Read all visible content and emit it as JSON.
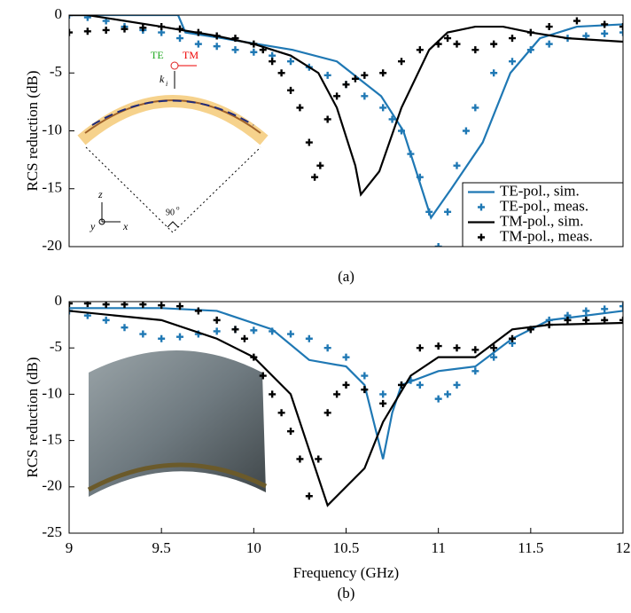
{
  "chart_data": [
    {
      "type": "line",
      "caption": "(a)",
      "y_label": "RCS reduction (dB)",
      "xlim": [
        9,
        12
      ],
      "ylim": [
        -20,
        0
      ],
      "yticks": [
        0,
        -5,
        -10,
        -15,
        -20
      ],
      "legend": "lower right",
      "inset_labels": {
        "te": "TE",
        "tm": "TM",
        "k": "k",
        "k_sub": "i",
        "angle": "90",
        "angle_sup": "o",
        "z": "z",
        "y": "y",
        "x": "x"
      },
      "series": [
        {
          "name": "TE-pol., sim.",
          "style": "line",
          "color": "#1f78b4",
          "x": [
            9,
            9.3,
            9.59,
            9.63,
            9.83,
            10.21,
            10.45,
            10.69,
            10.81,
            10.96,
            11.07,
            11.24,
            11.39,
            11.55,
            11.75,
            12
          ],
          "values": [
            0,
            0,
            0,
            -1.5,
            -2,
            -3,
            -4,
            -7,
            -10,
            -17.5,
            -15,
            -11,
            -5,
            -2,
            -1,
            -0.8
          ]
        },
        {
          "name": "TE-pol., meas.",
          "style": "markers",
          "color": "#1f78b4",
          "x": [
            9,
            9.1,
            9.2,
            9.3,
            9.4,
            9.5,
            9.6,
            9.7,
            9.8,
            9.9,
            10,
            10.1,
            10.2,
            10.3,
            10.4,
            10.5,
            10.6,
            10.7,
            10.75,
            10.8,
            10.85,
            10.9,
            10.95,
            11,
            11.05,
            11.1,
            11.15,
            11.2,
            11.3,
            11.4,
            11.5,
            11.6,
            11.7,
            11.8,
            11.9,
            12
          ],
          "values": [
            0,
            -0.2,
            -0.5,
            -1,
            -1.3,
            -1.5,
            -2,
            -2.5,
            -2.7,
            -3,
            -3.2,
            -3.5,
            -4,
            -4.5,
            -5.2,
            -6,
            -7,
            -8,
            -9,
            -10,
            -12,
            -14,
            -17,
            -20,
            -17,
            -13,
            -10,
            -8,
            -5,
            -4,
            -3,
            -2.5,
            -2,
            -1.8,
            -1.6,
            -1.5
          ]
        },
        {
          "name": "TM-pol., sim.",
          "style": "line",
          "color": "#000000",
          "x": [
            9,
            9.1,
            9.5,
            9.8,
            10,
            10.2,
            10.35,
            10.45,
            10.55,
            10.58,
            10.68,
            10.8,
            10.95,
            11.05,
            11.2,
            11.35,
            11.5,
            11.7,
            12
          ],
          "values": [
            0,
            0,
            -1,
            -1.8,
            -2.5,
            -3.5,
            -5,
            -8,
            -13,
            -15.5,
            -13.5,
            -8,
            -3,
            -1.5,
            -1,
            -1,
            -1.5,
            -2,
            -2.3
          ]
        },
        {
          "name": "TM-pol., meas.",
          "style": "markers",
          "color": "#000000",
          "x": [
            9,
            9.1,
            9.2,
            9.3,
            9.4,
            9.5,
            9.6,
            9.7,
            9.8,
            9.9,
            10,
            10.05,
            10.1,
            10.15,
            10.2,
            10.25,
            10.3,
            10.33,
            10.36,
            10.4,
            10.45,
            10.5,
            10.55,
            10.6,
            10.7,
            10.8,
            10.9,
            11,
            11.05,
            11.1,
            11.2,
            11.3,
            11.4,
            11.5,
            11.6,
            11.75,
            11.9,
            12
          ],
          "values": [
            -1.5,
            -1.4,
            -1.3,
            -1.2,
            -1.1,
            -1,
            -1.2,
            -1.5,
            -1.8,
            -2,
            -2.5,
            -3,
            -4,
            -5,
            -6.5,
            -8,
            -11,
            -14,
            -13,
            -9,
            -7,
            -6,
            -5.5,
            -5.2,
            -5,
            -4,
            -3,
            -2.5,
            -2,
            -2.5,
            -3,
            -2.5,
            -2,
            -1.5,
            -1,
            -0.5,
            -0.8,
            -1
          ]
        }
      ]
    },
    {
      "type": "line",
      "caption": "(b)",
      "y_label": "RCS reduction (dB)",
      "x_label": "Frequency (GHz)",
      "xlim": [
        9,
        12
      ],
      "xticks": [
        9,
        9.5,
        10,
        10.5,
        11,
        11.5,
        12
      ],
      "ylim": [
        -25,
        0
      ],
      "yticks": [
        0,
        -5,
        -10,
        -15,
        -20,
        -25
      ],
      "series": [
        {
          "style": "line",
          "color": "#1f78b4",
          "x": [
            9,
            9.5,
            9.8,
            10.1,
            10.3,
            10.5,
            10.6,
            10.7,
            10.75,
            10.8,
            11,
            11.2,
            11.4,
            11.6,
            12
          ],
          "values": [
            -0.7,
            -0.7,
            -1,
            -3,
            -6.3,
            -7,
            -9,
            -17,
            -12,
            -9,
            -7.5,
            -7,
            -4,
            -2,
            -1
          ]
        },
        {
          "style": "markers",
          "color": "#1f78b4",
          "x": [
            9,
            9.1,
            9.2,
            9.3,
            9.4,
            9.5,
            9.6,
            9.7,
            9.8,
            9.9,
            10,
            10.1,
            10.2,
            10.3,
            10.4,
            10.5,
            10.6,
            10.7,
            10.8,
            10.85,
            10.9,
            11,
            11.05,
            11.1,
            11.2,
            11.3,
            11.4,
            11.5,
            11.6,
            11.7,
            11.8,
            11.9,
            12
          ],
          "values": [
            -1,
            -1.5,
            -2,
            -2.8,
            -3.5,
            -4,
            -3.8,
            -3.5,
            -3.2,
            -3,
            -3.1,
            -3.2,
            -3.5,
            -4,
            -5,
            -6,
            -8,
            -10,
            -9,
            -8.5,
            -9,
            -10.5,
            -10,
            -9,
            -7.5,
            -6,
            -4.5,
            -3,
            -2,
            -1.5,
            -1,
            -0.8,
            -0.5
          ]
        },
        {
          "style": "line",
          "color": "#000000",
          "x": [
            9,
            9.5,
            9.8,
            10,
            10.2,
            10.3,
            10.4,
            10.6,
            10.7,
            10.85,
            11,
            11.2,
            11.4,
            11.6,
            12
          ],
          "values": [
            -1,
            -2,
            -4,
            -6,
            -10,
            -16,
            -22,
            -18,
            -13,
            -8,
            -6,
            -6,
            -3,
            -2.5,
            -2.3
          ]
        },
        {
          "style": "markers",
          "color": "#000000",
          "x": [
            9,
            9.1,
            9.2,
            9.3,
            9.4,
            9.5,
            9.6,
            9.7,
            9.8,
            9.9,
            9.95,
            10,
            10.05,
            10.1,
            10.15,
            10.2,
            10.25,
            10.3,
            10.35,
            10.4,
            10.45,
            10.5,
            10.6,
            10.7,
            10.8,
            10.9,
            11,
            11.1,
            11.2,
            11.3,
            11.4,
            11.5,
            11.6,
            11.7,
            11.8,
            11.9,
            12
          ],
          "values": [
            -0.2,
            -0.2,
            -0.3,
            -0.3,
            -0.3,
            -0.4,
            -0.5,
            -1,
            -2,
            -3,
            -4,
            -6,
            -8,
            -10,
            -12,
            -14,
            -17,
            -21,
            -17,
            -12,
            -10,
            -9,
            -9.5,
            -11,
            -9,
            -5,
            -4.8,
            -5,
            -5.2,
            -5,
            -4,
            -3,
            -2.5,
            -2,
            -2,
            -2,
            -2
          ]
        }
      ]
    }
  ]
}
